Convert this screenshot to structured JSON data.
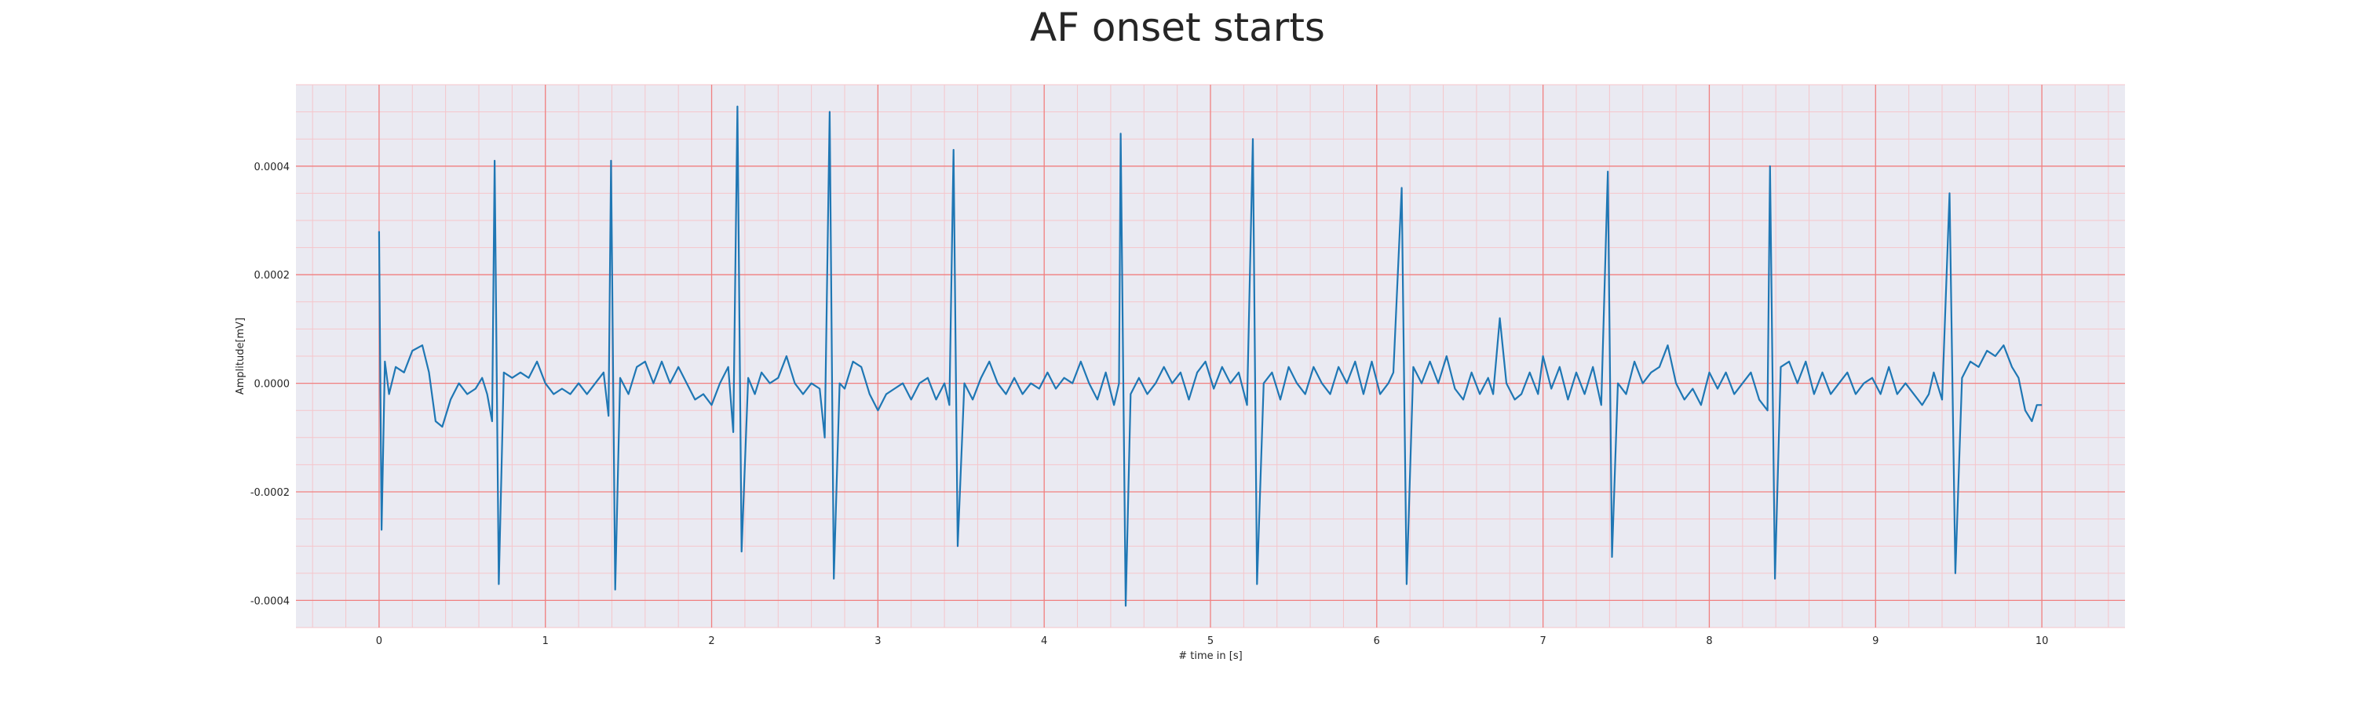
{
  "chart_data": {
    "type": "line",
    "title": "AF onset starts",
    "xlabel": "# time in [s]",
    "ylabel": "Amplitude[mV]",
    "xlim": [
      -0.5,
      10.5
    ],
    "ylim": [
      -0.00045,
      0.00055
    ],
    "xticks": [
      0,
      1,
      2,
      3,
      4,
      5,
      6,
      7,
      8,
      9,
      10
    ],
    "xtick_labels": [
      "0",
      "1",
      "2",
      "3",
      "4",
      "5",
      "6",
      "7",
      "8",
      "9",
      "10"
    ],
    "yticks": [
      -0.0004,
      -0.0002,
      0.0,
      0.0002,
      0.0004
    ],
    "ytick_labels": [
      "-0.0004",
      "-0.0002",
      "0.0000",
      "0.0002",
      "0.0004"
    ],
    "grid": true,
    "minor_grid": true,
    "colors": {
      "line": "#1f77b4",
      "plot_background": "#eaeaf2",
      "major_grid": "#f08080",
      "minor_grid": "#f5c6cb"
    },
    "series": [
      {
        "points": [
          [
            0.0,
            0.00028
          ],
          [
            0.015,
            -0.00027
          ],
          [
            0.035,
            4e-05
          ],
          [
            0.06,
            -2e-05
          ],
          [
            0.1,
            3e-05
          ],
          [
            0.15,
            2e-05
          ],
          [
            0.2,
            6e-05
          ],
          [
            0.26,
            7e-05
          ],
          [
            0.3,
            2e-05
          ],
          [
            0.34,
            -7e-05
          ],
          [
            0.38,
            -8e-05
          ],
          [
            0.43,
            -3e-05
          ],
          [
            0.48,
            0.0
          ],
          [
            0.53,
            -2e-05
          ],
          [
            0.58,
            -1e-05
          ],
          [
            0.62,
            1e-05
          ],
          [
            0.65,
            -2e-05
          ],
          [
            0.68,
            -7e-05
          ],
          [
            0.695,
            0.00041
          ],
          [
            0.72,
            -0.00037
          ],
          [
            0.75,
            2e-05
          ],
          [
            0.8,
            1e-05
          ],
          [
            0.85,
            2e-05
          ],
          [
            0.9,
            1e-05
          ],
          [
            0.95,
            4e-05
          ],
          [
            1.0,
            0.0
          ],
          [
            1.05,
            -2e-05
          ],
          [
            1.1,
            -1e-05
          ],
          [
            1.15,
            -2e-05
          ],
          [
            1.2,
            0.0
          ],
          [
            1.25,
            -2e-05
          ],
          [
            1.3,
            0.0
          ],
          [
            1.35,
            2e-05
          ],
          [
            1.38,
            -6e-05
          ],
          [
            1.395,
            0.00041
          ],
          [
            1.42,
            -0.00038
          ],
          [
            1.45,
            1e-05
          ],
          [
            1.5,
            -2e-05
          ],
          [
            1.55,
            3e-05
          ],
          [
            1.6,
            4e-05
          ],
          [
            1.65,
            0.0
          ],
          [
            1.7,
            4e-05
          ],
          [
            1.75,
            0.0
          ],
          [
            1.8,
            3e-05
          ],
          [
            1.85,
            0.0
          ],
          [
            1.9,
            -3e-05
          ],
          [
            1.95,
            -2e-05
          ],
          [
            2.0,
            -4e-05
          ],
          [
            2.05,
            0.0
          ],
          [
            2.1,
            3e-05
          ],
          [
            2.13,
            -9e-05
          ],
          [
            2.155,
            0.00051
          ],
          [
            2.18,
            -0.00031
          ],
          [
            2.22,
            1e-05
          ],
          [
            2.26,
            -2e-05
          ],
          [
            2.3,
            2e-05
          ],
          [
            2.35,
            0.0
          ],
          [
            2.4,
            1e-05
          ],
          [
            2.45,
            5e-05
          ],
          [
            2.5,
            0.0
          ],
          [
            2.55,
            -2e-05
          ],
          [
            2.6,
            0.0
          ],
          [
            2.65,
            -1e-05
          ],
          [
            2.68,
            -0.0001
          ],
          [
            2.71,
            0.0005
          ],
          [
            2.735,
            -0.00036
          ],
          [
            2.77,
            0.0
          ],
          [
            2.8,
            -1e-05
          ],
          [
            2.85,
            4e-05
          ],
          [
            2.9,
            3e-05
          ],
          [
            2.95,
            -2e-05
          ],
          [
            3.0,
            -5e-05
          ],
          [
            3.05,
            -2e-05
          ],
          [
            3.1,
            -1e-05
          ],
          [
            3.15,
            0.0
          ],
          [
            3.2,
            -3e-05
          ],
          [
            3.25,
            0.0
          ],
          [
            3.3,
            1e-05
          ],
          [
            3.35,
            -3e-05
          ],
          [
            3.4,
            0.0
          ],
          [
            3.43,
            -4e-05
          ],
          [
            3.455,
            0.00043
          ],
          [
            3.48,
            -0.0003
          ],
          [
            3.52,
            0.0
          ],
          [
            3.57,
            -3e-05
          ],
          [
            3.62,
            1e-05
          ],
          [
            3.67,
            4e-05
          ],
          [
            3.72,
            0.0
          ],
          [
            3.77,
            -2e-05
          ],
          [
            3.82,
            1e-05
          ],
          [
            3.87,
            -2e-05
          ],
          [
            3.92,
            0.0
          ],
          [
            3.97,
            -1e-05
          ],
          [
            4.02,
            2e-05
          ],
          [
            4.07,
            -1e-05
          ],
          [
            4.12,
            1e-05
          ],
          [
            4.17,
            0.0
          ],
          [
            4.22,
            4e-05
          ],
          [
            4.27,
            0.0
          ],
          [
            4.32,
            -3e-05
          ],
          [
            4.37,
            2e-05
          ],
          [
            4.42,
            -4e-05
          ],
          [
            4.45,
            0.0
          ],
          [
            4.46,
            0.00046
          ],
          [
            4.49,
            -0.00041
          ],
          [
            4.52,
            -2e-05
          ],
          [
            4.57,
            1e-05
          ],
          [
            4.62,
            -2e-05
          ],
          [
            4.67,
            0.0
          ],
          [
            4.72,
            3e-05
          ],
          [
            4.77,
            0.0
          ],
          [
            4.82,
            2e-05
          ],
          [
            4.87,
            -3e-05
          ],
          [
            4.92,
            2e-05
          ],
          [
            4.97,
            4e-05
          ],
          [
            5.02,
            -1e-05
          ],
          [
            5.07,
            3e-05
          ],
          [
            5.12,
            0.0
          ],
          [
            5.17,
            2e-05
          ],
          [
            5.22,
            -4e-05
          ],
          [
            5.255,
            0.00045
          ],
          [
            5.28,
            -0.00037
          ],
          [
            5.32,
            0.0
          ],
          [
            5.37,
            2e-05
          ],
          [
            5.42,
            -3e-05
          ],
          [
            5.47,
            3e-05
          ],
          [
            5.52,
            0.0
          ],
          [
            5.57,
            -2e-05
          ],
          [
            5.62,
            3e-05
          ],
          [
            5.67,
            0.0
          ],
          [
            5.72,
            -2e-05
          ],
          [
            5.77,
            3e-05
          ],
          [
            5.82,
            0.0
          ],
          [
            5.87,
            4e-05
          ],
          [
            5.92,
            -2e-05
          ],
          [
            5.97,
            4e-05
          ],
          [
            6.02,
            -2e-05
          ],
          [
            6.07,
            0.0
          ],
          [
            6.1,
            2e-05
          ],
          [
            6.15,
            0.00036
          ],
          [
            6.18,
            -0.00037
          ],
          [
            6.22,
            3e-05
          ],
          [
            6.27,
            0.0
          ],
          [
            6.32,
            4e-05
          ],
          [
            6.37,
            0.0
          ],
          [
            6.42,
            5e-05
          ],
          [
            6.47,
            -1e-05
          ],
          [
            6.52,
            -3e-05
          ],
          [
            6.57,
            2e-05
          ],
          [
            6.62,
            -2e-05
          ],
          [
            6.67,
            1e-05
          ],
          [
            6.7,
            -2e-05
          ],
          [
            6.74,
            0.00012
          ],
          [
            6.78,
            0.0
          ],
          [
            6.83,
            -3e-05
          ],
          [
            6.87,
            -2e-05
          ],
          [
            6.92,
            2e-05
          ],
          [
            6.97,
            -2e-05
          ],
          [
            7.0,
            5e-05
          ],
          [
            7.05,
            -1e-05
          ],
          [
            7.1,
            3e-05
          ],
          [
            7.15,
            -3e-05
          ],
          [
            7.2,
            2e-05
          ],
          [
            7.25,
            -2e-05
          ],
          [
            7.3,
            3e-05
          ],
          [
            7.35,
            -4e-05
          ],
          [
            7.39,
            0.00039
          ],
          [
            7.415,
            -0.00032
          ],
          [
            7.45,
            0.0
          ],
          [
            7.5,
            -2e-05
          ],
          [
            7.55,
            4e-05
          ],
          [
            7.6,
            0.0
          ],
          [
            7.65,
            2e-05
          ],
          [
            7.7,
            3e-05
          ],
          [
            7.75,
            7e-05
          ],
          [
            7.8,
            0.0
          ],
          [
            7.85,
            -3e-05
          ],
          [
            7.9,
            -1e-05
          ],
          [
            7.95,
            -4e-05
          ],
          [
            8.0,
            2e-05
          ],
          [
            8.05,
            -1e-05
          ],
          [
            8.1,
            2e-05
          ],
          [
            8.15,
            -2e-05
          ],
          [
            8.2,
            0.0
          ],
          [
            8.25,
            2e-05
          ],
          [
            8.3,
            -3e-05
          ],
          [
            8.35,
            -5e-05
          ],
          [
            8.365,
            0.0004
          ],
          [
            8.395,
            -0.00036
          ],
          [
            8.43,
            3e-05
          ],
          [
            8.48,
            4e-05
          ],
          [
            8.53,
            0.0
          ],
          [
            8.58,
            4e-05
          ],
          [
            8.63,
            -2e-05
          ],
          [
            8.68,
            2e-05
          ],
          [
            8.73,
            -2e-05
          ],
          [
            8.78,
            0.0
          ],
          [
            8.83,
            2e-05
          ],
          [
            8.88,
            -2e-05
          ],
          [
            8.93,
            0.0
          ],
          [
            8.98,
            1e-05
          ],
          [
            9.03,
            -2e-05
          ],
          [
            9.08,
            3e-05
          ],
          [
            9.13,
            -2e-05
          ],
          [
            9.18,
            0.0
          ],
          [
            9.23,
            -2e-05
          ],
          [
            9.28,
            -4e-05
          ],
          [
            9.32,
            -2e-05
          ],
          [
            9.35,
            2e-05
          ],
          [
            9.4,
            -3e-05
          ],
          [
            9.445,
            0.00035
          ],
          [
            9.48,
            -0.00035
          ],
          [
            9.52,
            1e-05
          ],
          [
            9.57,
            4e-05
          ],
          [
            9.62,
            3e-05
          ],
          [
            9.67,
            6e-05
          ],
          [
            9.72,
            5e-05
          ],
          [
            9.77,
            7e-05
          ],
          [
            9.82,
            3e-05
          ],
          [
            9.86,
            1e-05
          ],
          [
            9.9,
            -5e-05
          ],
          [
            9.94,
            -7e-05
          ],
          [
            9.97,
            -4e-05
          ],
          [
            10.0,
            -4e-05
          ]
        ]
      }
    ]
  }
}
